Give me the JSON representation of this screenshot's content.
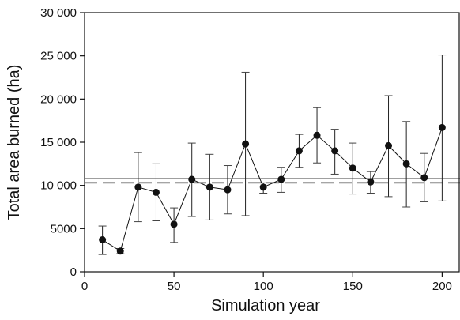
{
  "chart_data": {
    "type": "line",
    "title": "",
    "xlabel": "Simulation year",
    "ylabel": "Total area burned (ha)",
    "xlim": [
      0,
      210
    ],
    "ylim": [
      0,
      30000
    ],
    "x_ticks": [
      0,
      50,
      100,
      150,
      200
    ],
    "x_tick_labels": [
      "0",
      "50",
      "100",
      "150",
      "200"
    ],
    "y_ticks": [
      0,
      5000,
      10000,
      15000,
      20000,
      25000,
      30000
    ],
    "y_tick_labels": [
      "0",
      "5000",
      "10 000",
      "15 000",
      "20 000",
      "25 000",
      "30 000"
    ],
    "grid": false,
    "series": [
      {
        "x": [
          10,
          20,
          30,
          40,
          50,
          60,
          70,
          80,
          90,
          100,
          110,
          120,
          130,
          140,
          150,
          160,
          170,
          180,
          190,
          200
        ],
        "y": [
          3700,
          2400,
          9800,
          9200,
          5500,
          10700,
          9800,
          9500,
          14800,
          9800,
          10700,
          14000,
          15800,
          14000,
          12000,
          10400,
          14600,
          12500,
          10900,
          16700
        ],
        "error_upper": [
          5300,
          2700,
          13800,
          12500,
          7400,
          14900,
          13600,
          12300,
          23100,
          10300,
          12100,
          15900,
          19000,
          16500,
          14900,
          11600,
          20400,
          17400,
          13700,
          25100
        ],
        "error_lower": [
          2000,
          2100,
          5800,
          5900,
          3400,
          6400,
          6000,
          6700,
          6500,
          9100,
          9200,
          12100,
          12600,
          11300,
          9000,
          9100,
          8700,
          7500,
          8100,
          8200
        ]
      }
    ],
    "reference_lines": [
      {
        "style": "solid",
        "y": 10800
      },
      {
        "style": "dashed",
        "y": 10300
      }
    ]
  }
}
